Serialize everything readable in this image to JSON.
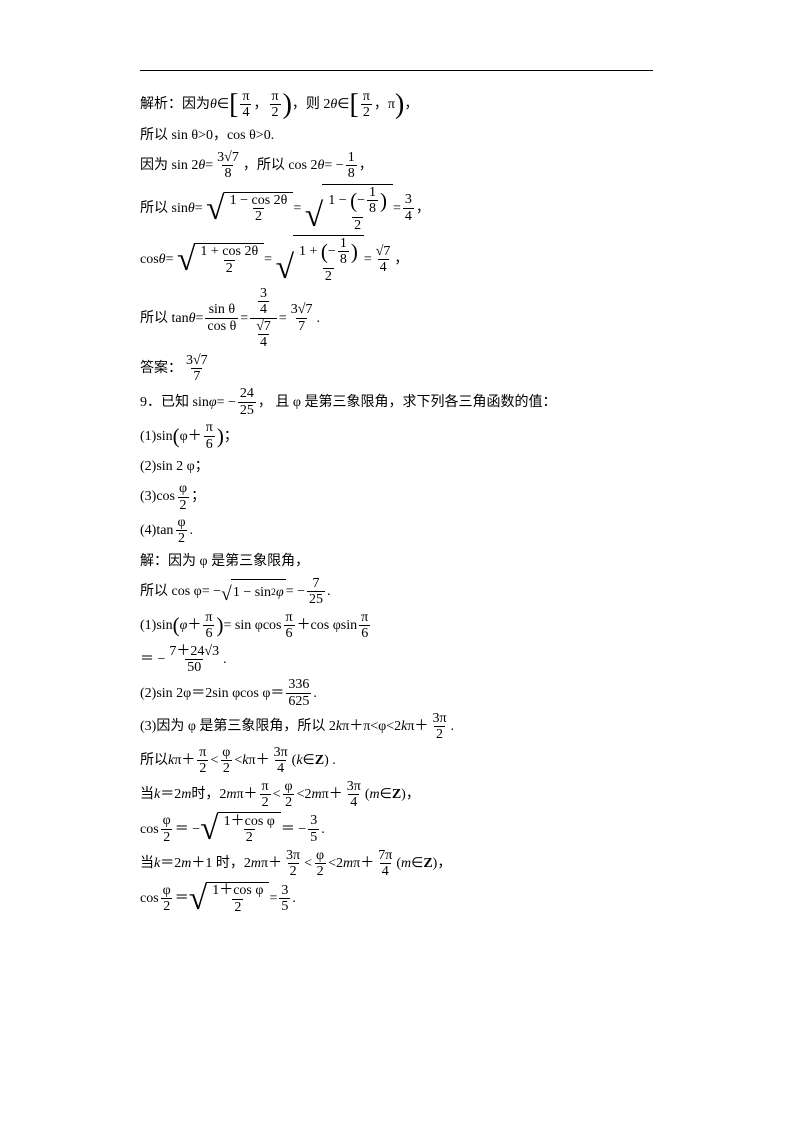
{
  "colors": {
    "text": "#000000",
    "bg": "#ffffff",
    "rule": "#000000"
  },
  "typography": {
    "body_fontsize_pt": 11,
    "font_family": "SimSun"
  },
  "l1a": "解析：因为 ",
  "l1b": "∈",
  "l1c": "，则 2",
  "l1d": "∈",
  "theta": "θ",
  "br_l": "[",
  "br_r": ")",
  "pi4n": "π",
  "pi4d": "4",
  "pi2n": "π",
  "pi2d": "2",
  "pi": "π",
  "comma": "，",
  "l2": "所以 sin  θ>0，cos  θ>0.",
  "l3a": "因为 sin 2",
  "l3b": "= ",
  "l3c": "，所以 cos 2",
  "l3d": "= −",
  "f38n": "3√7",
  "f38d": "8",
  "f18n": "1",
  "f18d": "8",
  "l4a": "所以 sin  ",
  "eq": "= ",
  "sqrt_txt": "√",
  "halfangle_sin_n": "1 − cos 2θ",
  "halfangle_d": "2",
  "halfangle_sin_n2a": "1 − ",
  "halfangle_sin_n2b": "−",
  "f34n": "3",
  "f34d": "4",
  "l5a": "cos  ",
  "halfangle_cos_n": "1 + cos 2θ",
  "halfangle_cos_n2a": "1 + ",
  "f74n": "√7",
  "f74d": "4",
  "l6a": "所以 tan  ",
  "tan_n": "sin θ",
  "tan_d": "cos θ",
  "f377n": "3√7",
  "f377d": "7",
  "period": ".",
  "l7": "答案：",
  "p9a": "9．已知 sin   ",
  "phi": "φ",
  "p9b": "= −",
  "f2425n": "24",
  "f2425d": "25",
  "p9c": "，  且 φ 是第三象限角，求下列各三角函数的值：",
  "p9_1a": "(1)sin",
  "p9_1b": "φ＋",
  "pi6n": "π",
  "pi6d": "6",
  "p9_1c": "；",
  "p9_2": "(2)sin 2 φ；",
  "p9_3a": "(3)cos",
  "phi2n": "φ",
  "phi2d": "2",
  "p9_3b": "；",
  "p9_4a": "(4)tan",
  "p9_4b": ".",
  "s1": "解：因为 φ 是第三象限角，",
  "s2a": "所以 cos  φ= −",
  "s2b": "1 − sin",
  "s2c": "φ",
  "s2d": "= −",
  "f725n": "7",
  "f725d": "25",
  "sup2": "2",
  "s3a": "(1)sin",
  "s3b": "= sin  φcos",
  "s3c": "＋cos  φsin",
  "s4a": "＝ −",
  "f50n": "7＋24√3",
  "f50d": "50",
  "s5a": "(2)sin 2φ＝2sin  φcos  φ＝",
  "f336n": "336",
  "f336d": "625",
  "s6a": "(3)因为 φ 是第三象限角，所以 2",
  "k": "k",
  "s6b": "π＋π<φ<2",
  "s6c": "π＋",
  "f3pi2n": "3π",
  "f3pi2d": "2",
  "s7a": "所以 ",
  "s7b": "π＋",
  "s7c": "<",
  "s7d": "<",
  "s7e": "π＋",
  "f3pi4n": "3π",
  "f3pi4d": "4",
  "s7f": "(",
  "s7g": "∈",
  "Z": "Z",
  "s7h": ") .",
  "s8a": "当 ",
  "s8b": "＝2",
  "m": "m",
  "s8c": " 时，2",
  "s8d": "π＋",
  "s8e": "<",
  "s8f": "<2",
  "s8g": "π＋",
  "s8h": ")，",
  "s9a": "cos",
  "s9b": "＝ −",
  "hacos_n": "1＋cos φ",
  "s9c": "＝ −",
  "f35n": "3",
  "f35d": "5",
  "s10a": "当 ",
  "s10b": "＝2",
  "s10c": "＋1 时，2",
  "s10d": "π＋",
  "s10e": "<",
  "s10f": "<2",
  "s10g": "π＋",
  "f7pi4n": "7π",
  "f7pi4d": "4",
  "s11a": "cos",
  "s11b": "＝ "
}
